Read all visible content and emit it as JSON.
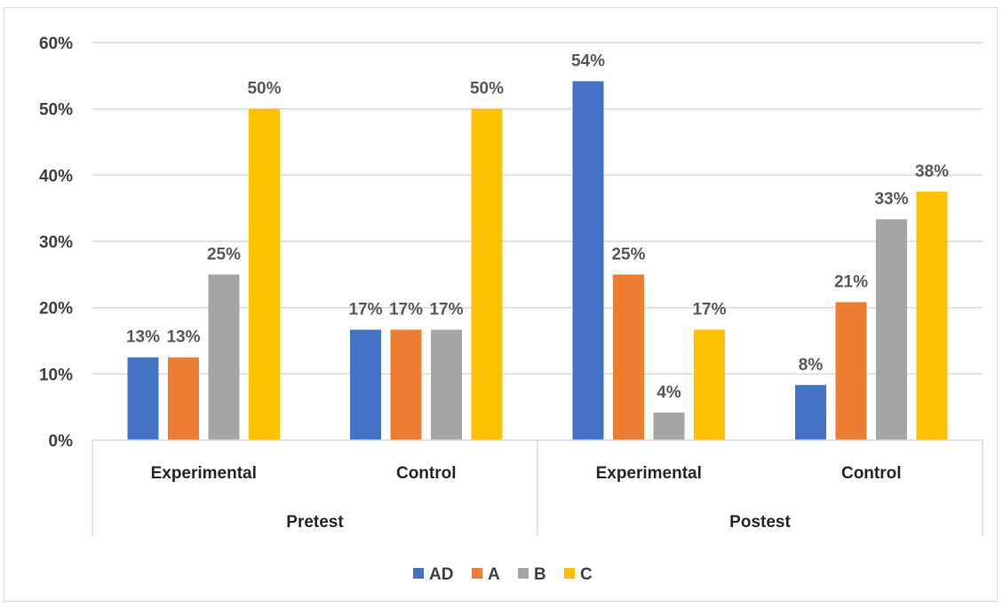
{
  "chart_data": {
    "type": "bar",
    "groups": [
      {
        "label": "Pretest",
        "categories": [
          "Experimental",
          "Control"
        ]
      },
      {
        "label": "Postest",
        "categories": [
          "Experimental",
          "Control"
        ]
      }
    ],
    "series": [
      {
        "name": "AD",
        "color": "#4472c4",
        "values": [
          12.5,
          16.67,
          54.17,
          8.33
        ],
        "labels": [
          "13%",
          "17%",
          "54%",
          "8%"
        ]
      },
      {
        "name": "A",
        "color": "#ed7d31",
        "values": [
          12.5,
          16.67,
          25.0,
          20.83
        ],
        "labels": [
          "13%",
          "17%",
          "25%",
          "21%"
        ]
      },
      {
        "name": "B",
        "color": "#a5a5a5",
        "values": [
          25.0,
          16.67,
          4.17,
          33.33
        ],
        "labels": [
          "25%",
          "17%",
          "4%",
          "33%"
        ]
      },
      {
        "name": "C",
        "color": "#ffc000",
        "values": [
          50.0,
          50.0,
          16.67,
          37.5
        ],
        "labels": [
          "50%",
          "50%",
          "17%",
          "38%"
        ]
      }
    ],
    "yaxis": {
      "min": 0,
      "max": 60,
      "ticks": [
        0,
        10,
        20,
        30,
        40,
        50,
        60
      ],
      "tick_labels": [
        "0%",
        "10%",
        "20%",
        "30%",
        "40%",
        "50%",
        "60%"
      ]
    },
    "grid": true,
    "legend_position": "bottom"
  }
}
